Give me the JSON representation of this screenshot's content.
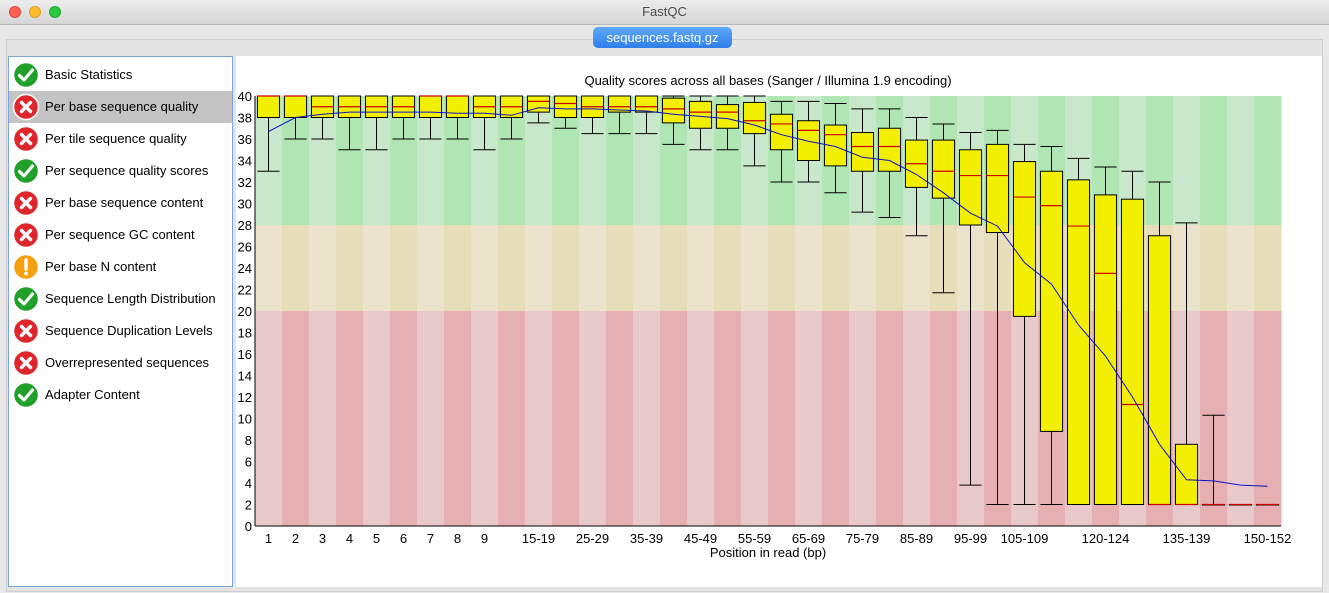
{
  "window": {
    "title": "FastQC"
  },
  "file_tab": {
    "label": "sequences.fastq.gz"
  },
  "sidebar": {
    "items": [
      {
        "label": "Basic Statistics",
        "status": "pass"
      },
      {
        "label": "Per base sequence quality",
        "status": "fail",
        "selected": true
      },
      {
        "label": "Per tile sequence quality",
        "status": "fail"
      },
      {
        "label": "Per sequence quality scores",
        "status": "pass"
      },
      {
        "label": "Per base sequence content",
        "status": "fail"
      },
      {
        "label": "Per sequence GC content",
        "status": "fail"
      },
      {
        "label": "Per base N content",
        "status": "warn"
      },
      {
        "label": "Sequence Length Distribution",
        "status": "pass"
      },
      {
        "label": "Sequence Duplication Levels",
        "status": "fail"
      },
      {
        "label": "Overrepresented sequences",
        "status": "fail"
      },
      {
        "label": "Adapter Content",
        "status": "pass"
      }
    ]
  },
  "colors": {
    "pass": "#1fa02b",
    "fail": "#e0262d",
    "warn": "#f5a10f",
    "box": "#f2ef00",
    "median": "#cc0000",
    "mean": "#1010cc",
    "good_dark": "#afe6b4",
    "good_light": "#c9e8cb",
    "ok_dark": "#e8ddb9",
    "ok_light": "#ece3cd",
    "bad_dark": "#e6afb2",
    "bad_light": "#e8c9cb"
  },
  "chart_data": {
    "type": "boxplot",
    "title": "Quality scores across all bases (Sanger / Illumina 1.9 encoding)",
    "xlabel": "Position in read (bp)",
    "ylabel": "",
    "ylim": [
      0,
      40
    ],
    "yticks": [
      0,
      2,
      4,
      6,
      8,
      10,
      12,
      14,
      16,
      18,
      20,
      22,
      24,
      26,
      28,
      30,
      32,
      34,
      36,
      38,
      40
    ],
    "zones": [
      {
        "name": "good",
        "from": 28,
        "to": 40
      },
      {
        "name": "reasonable",
        "from": 20,
        "to": 28
      },
      {
        "name": "poor",
        "from": 0,
        "to": 20
      }
    ],
    "categories": [
      "1",
      "2",
      "3",
      "4",
      "5",
      "6",
      "7",
      "8",
      "9",
      "10-14",
      "15-19",
      "20-24",
      "25-29",
      "30-34",
      "35-39",
      "40-44",
      "45-49",
      "50-54",
      "55-59",
      "60-64",
      "65-69",
      "70-74",
      "75-79",
      "80-84",
      "85-89",
      "90-94",
      "95-99",
      "100-104",
      "105-109",
      "110-114",
      "115-119",
      "120-124",
      "125-129",
      "130-134",
      "135-139",
      "140-144",
      "145-149",
      "150-152"
    ],
    "tick_labels": [
      "1",
      "2",
      "3",
      "4",
      "5",
      "6",
      "7",
      "8",
      "9",
      "",
      "15-19",
      "",
      "25-29",
      "",
      "35-39",
      "",
      "45-49",
      "",
      "55-59",
      "",
      "65-69",
      "",
      "75-79",
      "",
      "85-89",
      "",
      "95-99",
      "",
      "105-109",
      "",
      "",
      "120-124",
      "",
      "",
      "135-139",
      "",
      "",
      "150-152"
    ],
    "whisker_low": [
      33,
      36,
      36,
      35,
      35,
      36,
      36,
      36,
      35,
      36,
      37.5,
      37,
      36.5,
      36.5,
      36.5,
      35.5,
      35,
      35,
      33.5,
      32,
      32,
      31,
      29.2,
      28.7,
      27,
      21.7,
      3.8,
      2,
      2,
      2,
      2,
      2,
      2,
      2,
      2,
      2,
      2,
      2
    ],
    "q1": [
      38,
      38,
      38,
      38,
      38,
      38,
      38,
      38,
      38,
      38,
      38.5,
      38,
      38,
      38.5,
      38.5,
      37.5,
      37,
      37,
      36.5,
      35,
      34,
      33.5,
      33,
      33,
      31.5,
      30.5,
      28,
      27.3,
      19.5,
      8.8,
      2,
      2,
      2,
      2,
      2,
      2,
      2,
      2
    ],
    "median": [
      40,
      40,
      39,
      39,
      39,
      39,
      40,
      40,
      39,
      39,
      39.5,
      39.3,
      39,
      39,
      39,
      38.8,
      38.5,
      38.5,
      37.7,
      37.4,
      36.8,
      36.4,
      35.3,
      35.3,
      33.7,
      33,
      32.6,
      32.6,
      30.6,
      29.8,
      27.9,
      23.5,
      11.3,
      2,
      2,
      2,
      2,
      2
    ],
    "q3": [
      40,
      40,
      40,
      40,
      40,
      40,
      40,
      40,
      40,
      40,
      40,
      40,
      40,
      40,
      40,
      39.8,
      39.5,
      39.2,
      39.4,
      38.3,
      37.7,
      37.3,
      36.6,
      37.0,
      35.9,
      35.9,
      35,
      35.5,
      33.9,
      33,
      32.2,
      30.8,
      30.4,
      27,
      7.6,
      2,
      2,
      2
    ],
    "whisker_high": [
      40,
      40,
      40,
      40,
      40,
      40,
      40,
      40,
      40,
      40,
      40,
      40,
      40,
      40,
      40,
      40,
      40,
      40,
      40,
      39.5,
      39.5,
      39.3,
      38.8,
      38.8,
      38,
      37.4,
      36.6,
      36.8,
      35.5,
      35.3,
      34.2,
      33.4,
      33,
      32,
      28.2,
      10.3,
      2,
      2
    ],
    "mean": [
      36.7,
      38,
      38.3,
      38.5,
      38.5,
      38.5,
      38.5,
      38.4,
      38.4,
      38.2,
      38.9,
      38.8,
      38.8,
      38.7,
      38.6,
      38.3,
      38.1,
      37.9,
      37.3,
      36.4,
      35.8,
      35.3,
      34.3,
      34.0,
      32.7,
      31.0,
      29.1,
      27.9,
      24.5,
      22.5,
      18.7,
      15.8,
      12.0,
      7.6,
      4.3,
      4.2,
      3.8,
      3.7
    ]
  }
}
